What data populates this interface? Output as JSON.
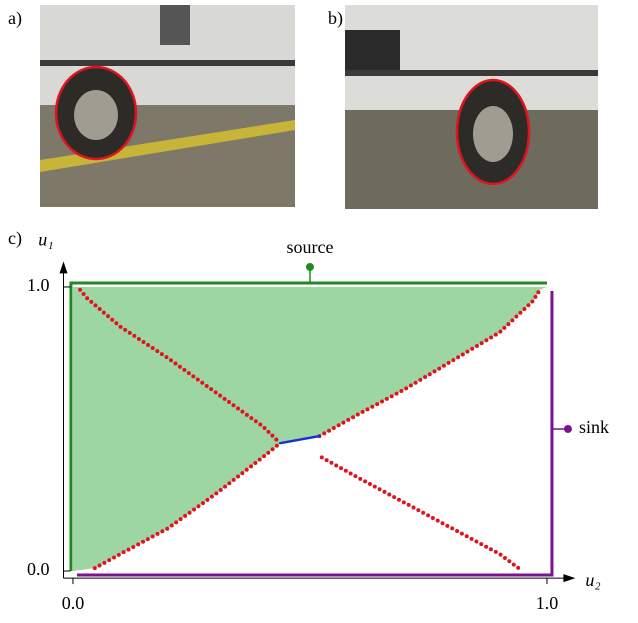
{
  "panels": {
    "a": "a)",
    "b": "b)",
    "c": "c)"
  },
  "chart_data": {
    "type": "line",
    "y_label": "u₁",
    "x_label": "u₂",
    "xlim": [
      -0.02,
      1.06
    ],
    "ylim": [
      -0.025,
      1.09
    ],
    "xticks": [
      {
        "value": 0,
        "label": "0.0"
      },
      {
        "value": 1,
        "label": "1.0"
      }
    ],
    "yticks": [
      {
        "value": 0,
        "label": "0.0"
      },
      {
        "value": 1,
        "label": "1.0"
      }
    ],
    "annotations": {
      "source": "source",
      "sink": "sink"
    },
    "series": [
      {
        "color": "#e0141e",
        "dotted": true,
        "x": [
          0.015,
          0.03,
          0.1,
          0.2,
          0.3,
          0.4,
          0.437
        ],
        "y": [
          0.99,
          0.96,
          0.86,
          0.75,
          0.63,
          0.51,
          0.45
        ]
      },
      {
        "color": "#e0141e",
        "dotted": true,
        "x": [
          0.046,
          0.1,
          0.2,
          0.3,
          0.4,
          0.437
        ],
        "y": [
          0.01,
          0.06,
          0.15,
          0.27,
          0.4,
          0.45
        ]
      },
      {
        "color": "#e0141e",
        "dotted": true,
        "x": [
          0.52,
          0.6,
          0.7,
          0.8,
          0.9,
          0.97,
          0.985
        ],
        "y": [
          0.475,
          0.55,
          0.64,
          0.74,
          0.84,
          0.95,
          0.99
        ]
      },
      {
        "color": "#e0141e",
        "dotted": true,
        "x": [
          0.525,
          0.6,
          0.7,
          0.8,
          0.9,
          0.94
        ],
        "y": [
          0.4,
          0.33,
          0.24,
          0.15,
          0.06,
          0.01
        ]
      },
      {
        "color": "#1a2fd6",
        "dotted": false,
        "x": [
          0.437,
          0.52
        ],
        "y": [
          0.45,
          0.475
        ]
      }
    ],
    "region_color": "#9dd6a2",
    "source_color": "#1f8a22",
    "sink_color": "#7b1290"
  }
}
